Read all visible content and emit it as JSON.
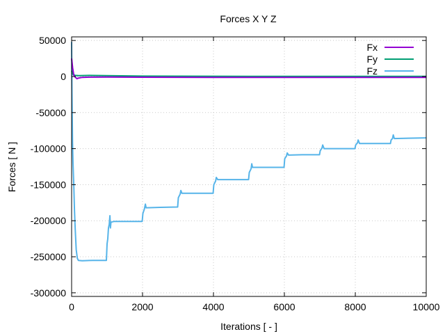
{
  "chart_data": {
    "type": "line",
    "title": "Forces X Y Z",
    "xlabel": "Iterations [ - ]",
    "ylabel": "Forces [ N ]",
    "xlim": [
      0,
      10000
    ],
    "ylim": [
      -305000,
      55000
    ],
    "xticks": [
      0,
      2000,
      4000,
      6000,
      8000,
      10000
    ],
    "xtick_labels": [
      "0",
      "2000",
      "4000",
      "6000",
      "8000",
      "10000"
    ],
    "yticks": [
      50000,
      0,
      -50000,
      -100000,
      -150000,
      -200000,
      -250000,
      -300000
    ],
    "ytick_labels": [
      "50000",
      "0",
      "-50000",
      "-100000",
      "-150000",
      "-200000",
      "-250000",
      "-300000"
    ],
    "grid": true,
    "legend_position": "top-right",
    "series": [
      {
        "name": "Fx",
        "color": "#9400d3",
        "points": [
          [
            0,
            25000
          ],
          [
            30,
            12000
          ],
          [
            60,
            2000
          ],
          [
            100,
            -800
          ],
          [
            150,
            -3000
          ],
          [
            200,
            -2000
          ],
          [
            300,
            -1200
          ],
          [
            500,
            -900
          ],
          [
            1000,
            -800
          ],
          [
            2000,
            -1000
          ],
          [
            3000,
            -1100
          ],
          [
            4000,
            -1200
          ],
          [
            5000,
            -1300
          ],
          [
            6000,
            -1300
          ],
          [
            7000,
            -1300
          ],
          [
            8000,
            -1300
          ],
          [
            9000,
            -1200
          ],
          [
            10000,
            -1200
          ]
        ]
      },
      {
        "name": "Fy",
        "color": "#009e73",
        "points": [
          [
            0,
            8000
          ],
          [
            40,
            3000
          ],
          [
            100,
            1500
          ],
          [
            200,
            1200
          ],
          [
            500,
            1500
          ],
          [
            1000,
            1200
          ],
          [
            2000,
            600
          ],
          [
            3000,
            500
          ],
          [
            4000,
            400
          ],
          [
            5000,
            300
          ],
          [
            6000,
            300
          ],
          [
            7000,
            200
          ],
          [
            8000,
            200
          ],
          [
            9000,
            200
          ],
          [
            10000,
            200
          ]
        ]
      },
      {
        "name": "Fz",
        "color": "#56b4e9",
        "points": [
          [
            0,
            48000
          ],
          [
            10,
            -20000
          ],
          [
            25,
            -90000
          ],
          [
            40,
            -120000
          ],
          [
            60,
            -150000
          ],
          [
            80,
            -185000
          ],
          [
            100,
            -210000
          ],
          [
            130,
            -240000
          ],
          [
            160,
            -252000
          ],
          [
            190,
            -255000
          ],
          [
            300,
            -255500
          ],
          [
            600,
            -255000
          ],
          [
            980,
            -255000
          ],
          [
            1000,
            -232000
          ],
          [
            1020,
            -225000
          ],
          [
            1040,
            -210000
          ],
          [
            1060,
            -205000
          ],
          [
            1080,
            -193000
          ],
          [
            1095,
            -210000
          ],
          [
            1110,
            -202000
          ],
          [
            1200,
            -201000
          ],
          [
            1500,
            -201000
          ],
          [
            1990,
            -201000
          ],
          [
            2010,
            -190000
          ],
          [
            2050,
            -184000
          ],
          [
            2080,
            -177000
          ],
          [
            2100,
            -182000
          ],
          [
            2500,
            -181500
          ],
          [
            2990,
            -181000
          ],
          [
            3010,
            -168000
          ],
          [
            3060,
            -163000
          ],
          [
            3080,
            -158000
          ],
          [
            3110,
            -162000
          ],
          [
            3500,
            -162000
          ],
          [
            3990,
            -162000
          ],
          [
            4010,
            -150000
          ],
          [
            4060,
            -145000
          ],
          [
            4080,
            -140000
          ],
          [
            4120,
            -143000
          ],
          [
            4600,
            -143000
          ],
          [
            4990,
            -143000
          ],
          [
            5010,
            -133000
          ],
          [
            5060,
            -128000
          ],
          [
            5080,
            -121000
          ],
          [
            5100,
            -126000
          ],
          [
            5500,
            -126000
          ],
          [
            5990,
            -126000
          ],
          [
            6010,
            -114000
          ],
          [
            6060,
            -110000
          ],
          [
            6080,
            -106000
          ],
          [
            6120,
            -109000
          ],
          [
            6500,
            -108500
          ],
          [
            6990,
            -108500
          ],
          [
            7010,
            -103000
          ],
          [
            7060,
            -99000
          ],
          [
            7080,
            -95000
          ],
          [
            7120,
            -100000
          ],
          [
            7600,
            -100000
          ],
          [
            7990,
            -100000
          ],
          [
            8010,
            -95000
          ],
          [
            8060,
            -92000
          ],
          [
            8080,
            -88000
          ],
          [
            8120,
            -93000
          ],
          [
            8500,
            -93000
          ],
          [
            8990,
            -93000
          ],
          [
            9010,
            -88000
          ],
          [
            9050,
            -86000
          ],
          [
            9070,
            -81000
          ],
          [
            9100,
            -86000
          ],
          [
            9500,
            -85500
          ],
          [
            10000,
            -85000
          ]
        ]
      }
    ]
  }
}
